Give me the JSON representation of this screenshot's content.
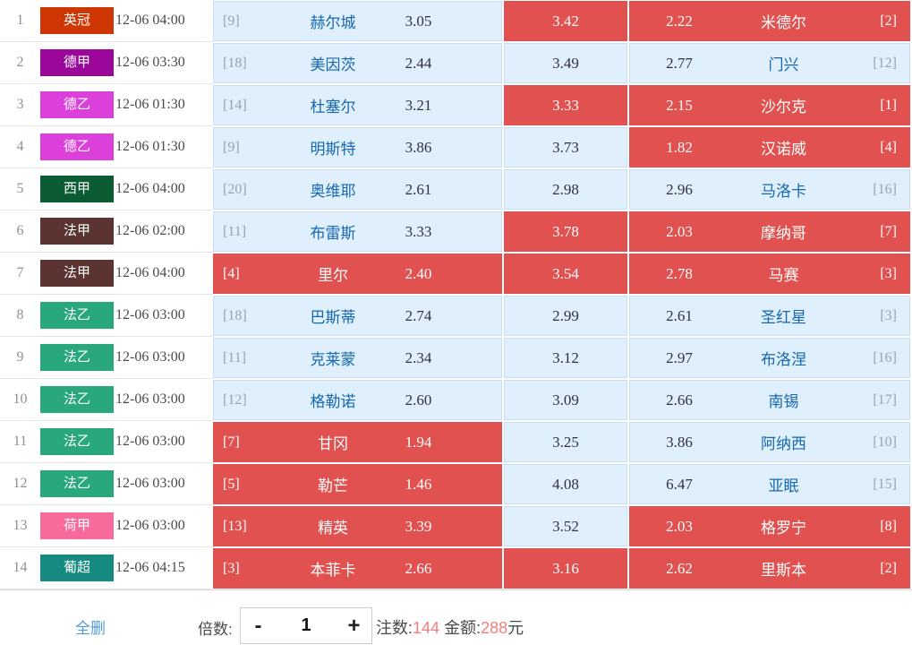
{
  "rows": [
    {
      "num": "1",
      "league": "英冠",
      "league_color": "#ce3703",
      "time": "12-06 04:00",
      "home_rank": "[9]",
      "home_team": "赫尔城",
      "home_odds": "3.05",
      "home_selected": false,
      "draw_odds": "3.42",
      "draw_selected": true,
      "away_odds": "2.22",
      "away_team": "米德尔",
      "away_rank": "[2]",
      "away_selected": true
    },
    {
      "num": "2",
      "league": "德甲",
      "league_color": "#9a079a",
      "time": "12-06 03:30",
      "home_rank": "[18]",
      "home_team": "美因茨",
      "home_odds": "2.44",
      "home_selected": false,
      "draw_odds": "3.49",
      "draw_selected": false,
      "away_odds": "2.77",
      "away_team": "门兴",
      "away_rank": "[12]",
      "away_selected": false
    },
    {
      "num": "3",
      "league": "德乙",
      "league_color": "#dc40db",
      "time": "12-06 01:30",
      "home_rank": "[14]",
      "home_team": "杜塞尔",
      "home_odds": "3.21",
      "home_selected": false,
      "draw_odds": "3.33",
      "draw_selected": true,
      "away_odds": "2.15",
      "away_team": "沙尔克",
      "away_rank": "[1]",
      "away_selected": true
    },
    {
      "num": "4",
      "league": "德乙",
      "league_color": "#dc40db",
      "time": "12-06 01:30",
      "home_rank": "[9]",
      "home_team": "明斯特",
      "home_odds": "3.86",
      "home_selected": false,
      "draw_odds": "3.73",
      "draw_selected": false,
      "away_odds": "1.82",
      "away_team": "汉诺威",
      "away_rank": "[4]",
      "away_selected": true
    },
    {
      "num": "5",
      "league": "西甲",
      "league_color": "#0b5c33",
      "time": "12-06 04:00",
      "home_rank": "[20]",
      "home_team": "奥维耶",
      "home_odds": "2.61",
      "home_selected": false,
      "draw_odds": "2.98",
      "draw_selected": false,
      "away_odds": "2.96",
      "away_team": "马洛卡",
      "away_rank": "[16]",
      "away_selected": false
    },
    {
      "num": "6",
      "league": "法甲",
      "league_color": "#5b3432",
      "time": "12-06 02:00",
      "home_rank": "[11]",
      "home_team": "布雷斯",
      "home_odds": "3.33",
      "home_selected": false,
      "draw_odds": "3.78",
      "draw_selected": true,
      "away_odds": "2.03",
      "away_team": "摩纳哥",
      "away_rank": "[7]",
      "away_selected": true
    },
    {
      "num": "7",
      "league": "法甲",
      "league_color": "#5b3432",
      "time": "12-06 04:00",
      "home_rank": "[4]",
      "home_team": "里尔",
      "home_odds": "2.40",
      "home_selected": true,
      "draw_odds": "3.54",
      "draw_selected": true,
      "away_odds": "2.78",
      "away_team": "马赛",
      "away_rank": "[3]",
      "away_selected": true
    },
    {
      "num": "8",
      "league": "法乙",
      "league_color": "#29a87e",
      "time": "12-06 03:00",
      "home_rank": "[18]",
      "home_team": "巴斯蒂",
      "home_odds": "2.74",
      "home_selected": false,
      "draw_odds": "2.99",
      "draw_selected": false,
      "away_odds": "2.61",
      "away_team": "圣红星",
      "away_rank": "[3]",
      "away_selected": false
    },
    {
      "num": "9",
      "league": "法乙",
      "league_color": "#29a87e",
      "time": "12-06 03:00",
      "home_rank": "[11]",
      "home_team": "克莱蒙",
      "home_odds": "2.34",
      "home_selected": false,
      "draw_odds": "3.12",
      "draw_selected": false,
      "away_odds": "2.97",
      "away_team": "布洛涅",
      "away_rank": "[16]",
      "away_selected": false
    },
    {
      "num": "10",
      "league": "法乙",
      "league_color": "#29a87e",
      "time": "12-06 03:00",
      "home_rank": "[12]",
      "home_team": "格勒诺",
      "home_odds": "2.60",
      "home_selected": false,
      "draw_odds": "3.09",
      "draw_selected": false,
      "away_odds": "2.66",
      "away_team": "南锡",
      "away_rank": "[17]",
      "away_selected": false
    },
    {
      "num": "11",
      "league": "法乙",
      "league_color": "#29a87e",
      "time": "12-06 03:00",
      "home_rank": "[7]",
      "home_team": "甘冈",
      "home_odds": "1.94",
      "home_selected": true,
      "draw_odds": "3.25",
      "draw_selected": false,
      "away_odds": "3.86",
      "away_team": "阿纳西",
      "away_rank": "[10]",
      "away_selected": false
    },
    {
      "num": "12",
      "league": "法乙",
      "league_color": "#29a87e",
      "time": "12-06 03:00",
      "home_rank": "[5]",
      "home_team": "勒芒",
      "home_odds": "1.46",
      "home_selected": true,
      "draw_odds": "4.08",
      "draw_selected": false,
      "away_odds": "6.47",
      "away_team": "亚眠",
      "away_rank": "[15]",
      "away_selected": false
    },
    {
      "num": "13",
      "league": "荷甲",
      "league_color": "#f76b9c",
      "time": "12-06 03:00",
      "home_rank": "[13]",
      "home_team": "精英",
      "home_odds": "3.39",
      "home_selected": true,
      "draw_odds": "3.52",
      "draw_selected": false,
      "away_odds": "2.03",
      "away_team": "格罗宁",
      "away_rank": "[8]",
      "away_selected": true
    },
    {
      "num": "14",
      "league": "葡超",
      "league_color": "#148a80",
      "time": "12-06 04:15",
      "home_rank": "[3]",
      "home_team": "本菲卡",
      "home_odds": "2.66",
      "home_selected": true,
      "draw_odds": "3.16",
      "draw_selected": true,
      "away_odds": "2.62",
      "away_team": "里斯本",
      "away_rank": "[2]",
      "away_selected": true
    }
  ],
  "footer": {
    "delete_all_label": "全删",
    "multiplier_label": "倍数:",
    "minus_label": "-",
    "multiplier_value": "1",
    "plus_label": "+",
    "bets_label": "注数:",
    "bets_count": "144",
    "amount_label": "金额:",
    "amount_value": "288",
    "amount_unit": "元"
  },
  "colors": {
    "selected_cell": "#e0514f",
    "unselected_cell": "#dfeffb",
    "team_name_blue": "#1767ae",
    "link_blue": "#4e9cd8",
    "summary_number_red": "#f87d7d"
  }
}
